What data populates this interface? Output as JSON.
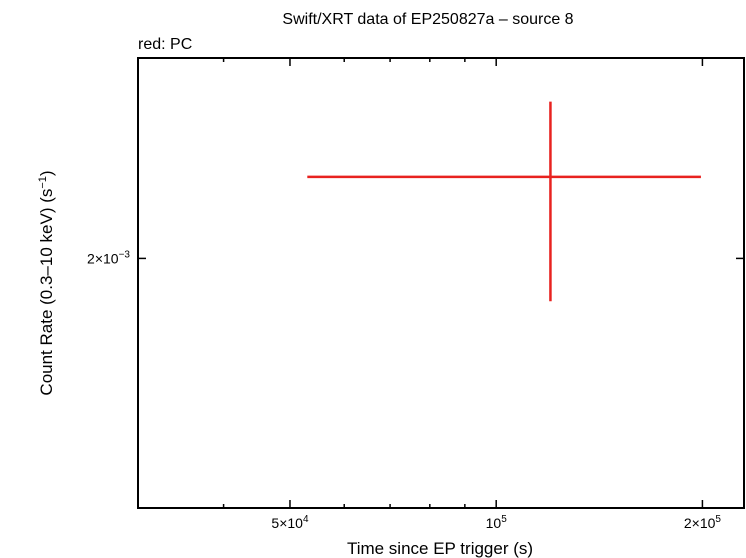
{
  "chart_data": {
    "type": "scatter",
    "title": "Swift/XRT data of EP250827a – source 8",
    "subtitle": "red: PC",
    "xlabel": "Time since EP trigger (s)",
    "ylabel_main": "Count Rate (0.3–10 keV) (s",
    "ylabel_sup": "−1",
    "ylabel_close": ")",
    "x_scale": "log",
    "y_scale": "log",
    "xlim": [
      30000,
      230000
    ],
    "ylim": [
      0.00127,
      0.00288
    ],
    "x_ticks": [
      {
        "value": 50000,
        "base": "5×10",
        "exp": "4"
      },
      {
        "value": 100000,
        "base": "10",
        "exp": "5"
      },
      {
        "value": 200000,
        "base": "2×10",
        "exp": "5"
      }
    ],
    "y_ticks": [
      {
        "value": 0.002,
        "base": "2×10",
        "exp": "−3"
      }
    ],
    "series": [
      {
        "color": "#e8221f",
        "points": [
          {
            "x": 120000,
            "x_low": 53000,
            "x_high": 199000,
            "y": 0.00232,
            "y_low": 0.00185,
            "y_high": 0.00266
          }
        ]
      }
    ],
    "grid": false,
    "legend": "none"
  }
}
